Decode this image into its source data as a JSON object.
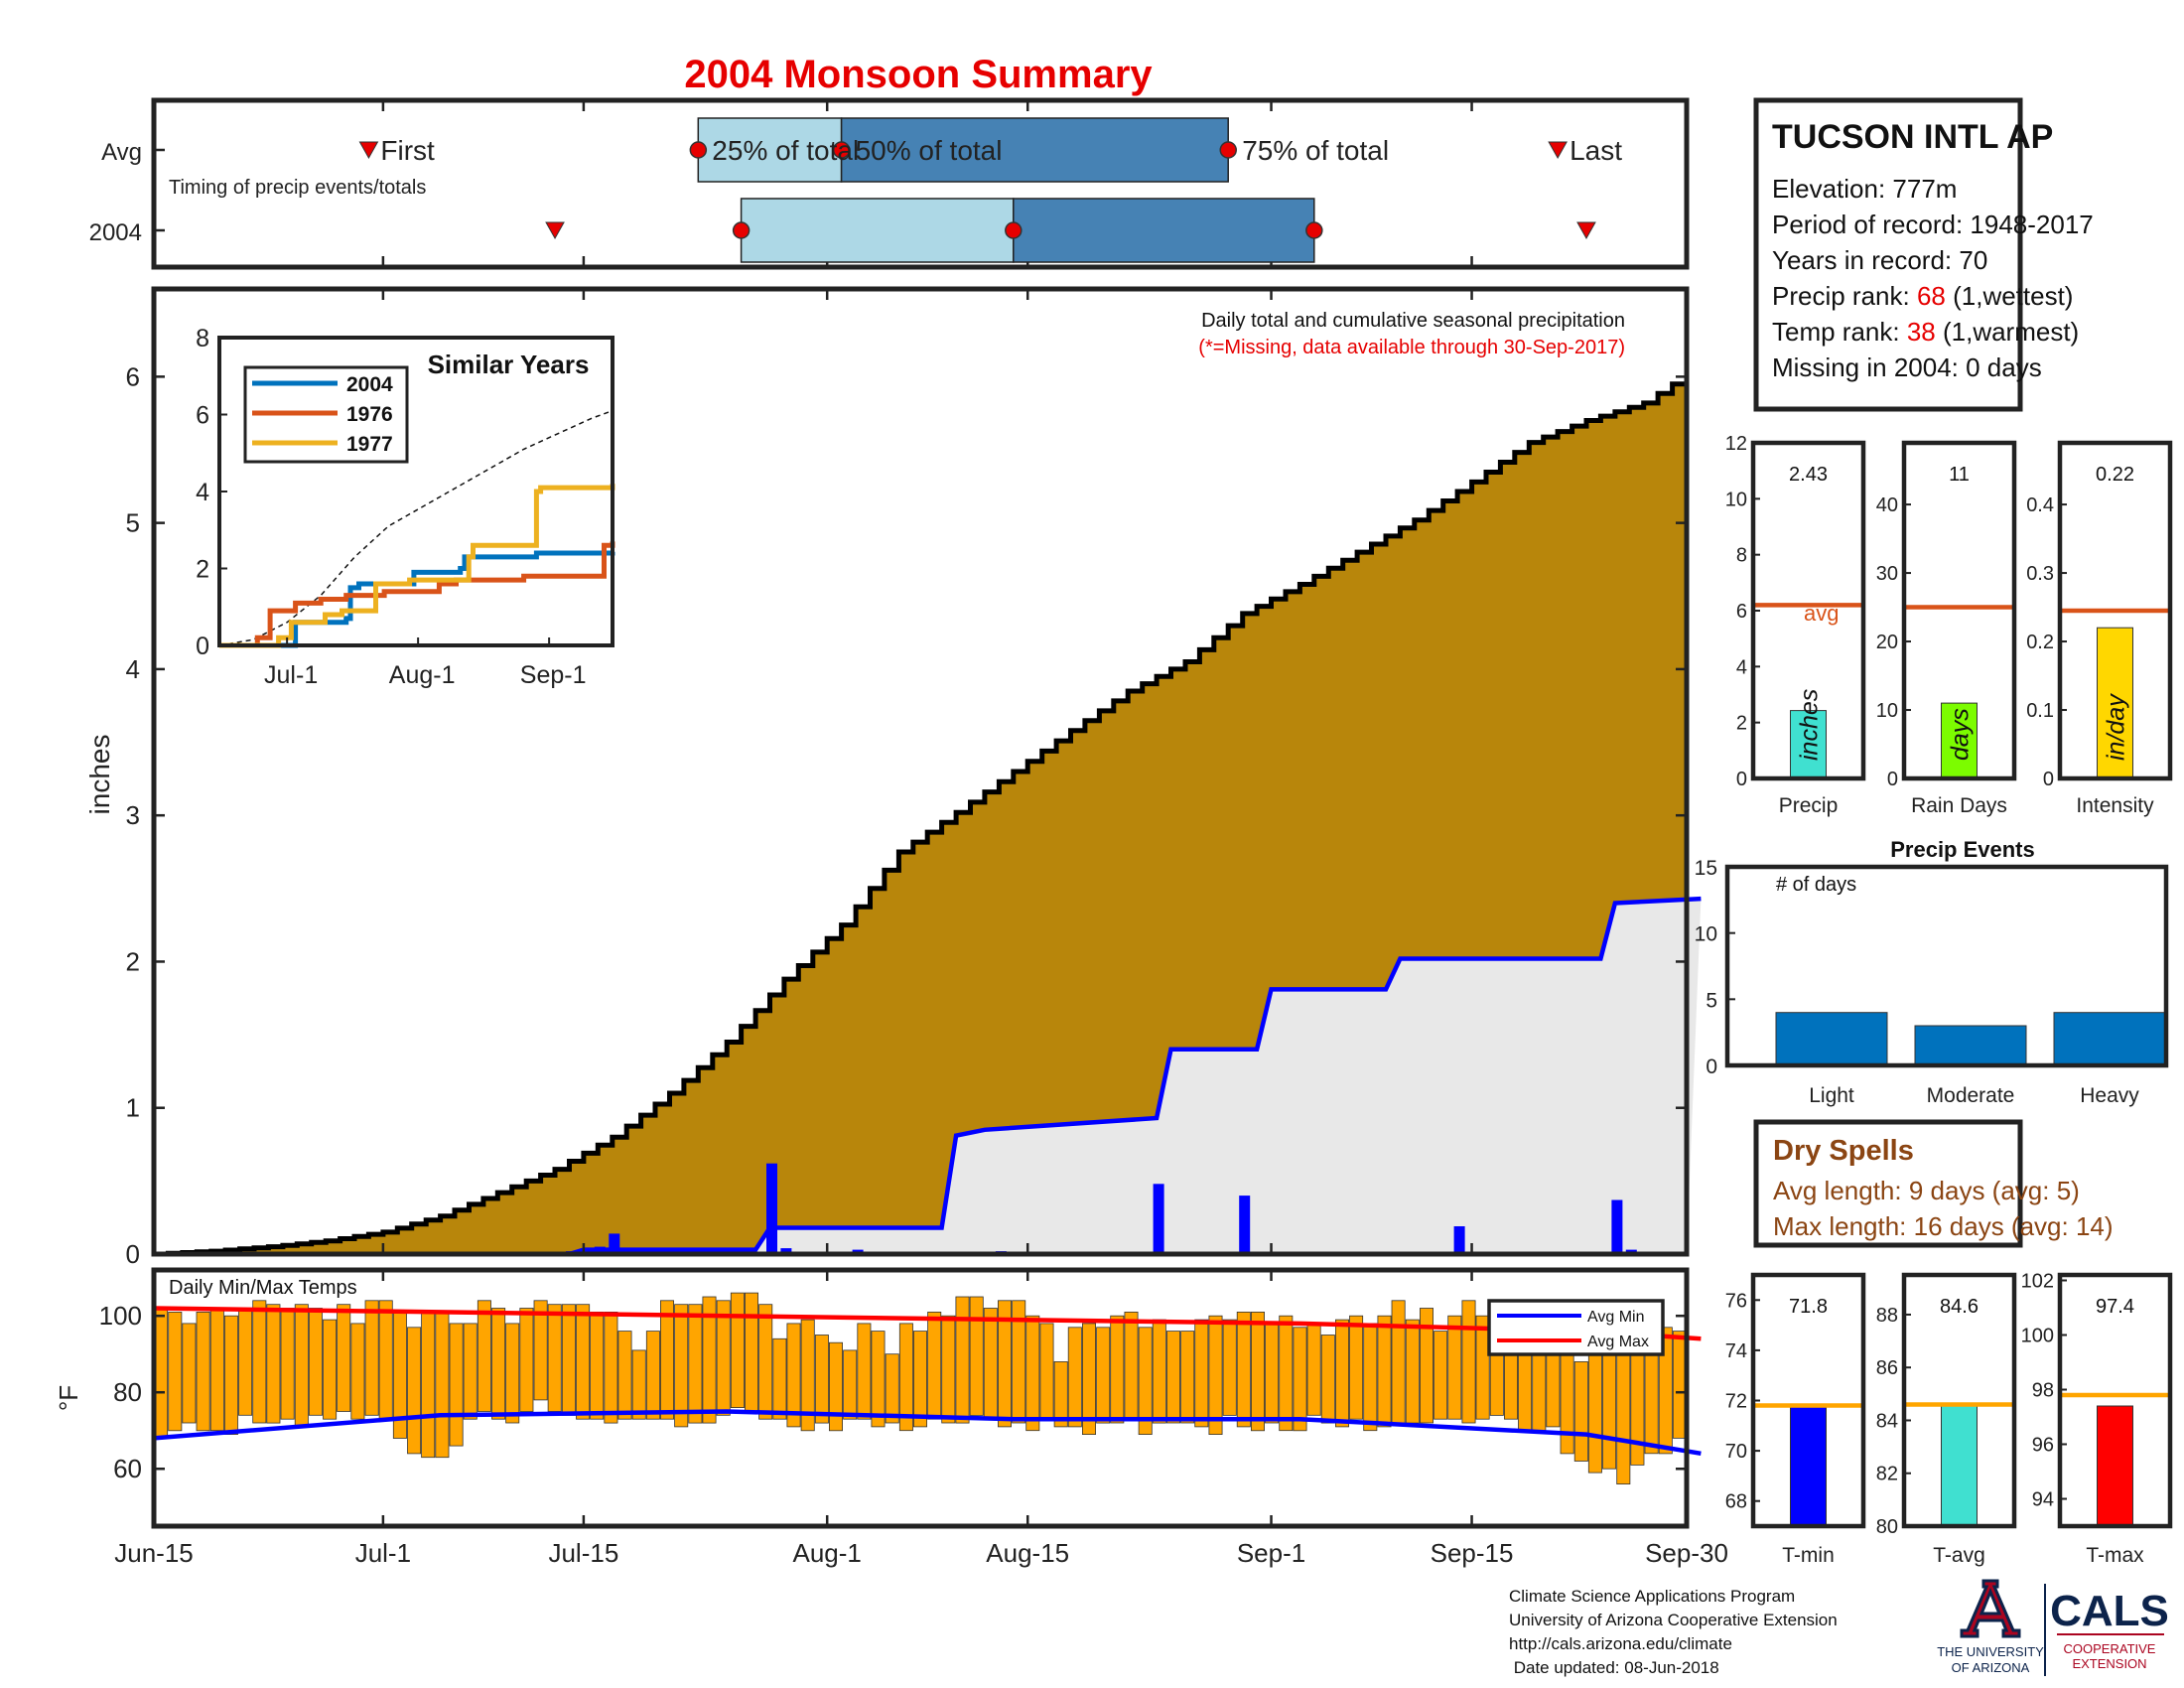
{
  "title": "2004 Monsoon Summary",
  "timing": {
    "row_avg": "Avg",
    "row_year": "2004",
    "caption": "Timing of precip events/totals",
    "first_label": "First",
    "last_label": "Last",
    "p25_label": "25% of total",
    "p50_label": "50% of total",
    "p75_label": "75% of total",
    "avg": {
      "first": "2004-06-30",
      "p25": "2004-07-23",
      "p50": "2004-08-02",
      "p75": "2004-08-29",
      "last": "2004-09-21"
    },
    "year": {
      "first": "2004-07-13",
      "p25": "2004-07-26",
      "p50": "2004-08-14",
      "p75": "2004-09-04",
      "last": "2004-09-23"
    },
    "colors": {
      "light": "#add8e6",
      "dark": "#4682b4",
      "marker": "#e60000"
    }
  },
  "station": {
    "name": "TUCSON INTL AP",
    "elevation": "Elevation: 777m",
    "period": "Period of record: 1948-2017",
    "years": "Years in record: 70",
    "precip_rank_label": "Precip rank: ",
    "precip_rank_value": "68",
    "precip_rank_note": " (1,wettest)",
    "temp_rank_label": "Temp rank: ",
    "temp_rank_value": "38",
    "temp_rank_note": " (1,warmest)",
    "missing": "Missing in 2004: 0 days"
  },
  "main_chart": {
    "ylabel": "inches",
    "note1": "Daily total and cumulative seasonal precipitation",
    "note2": "(*=Missing, data available through 30-Sep-2017)",
    "colors": {
      "avg_fill": "#b8860b",
      "year_fill": "#e8e8e8",
      "year_line": "#0000ff",
      "daily_bar": "#0000ff"
    }
  },
  "inset": {
    "title": "Similar Years",
    "legend": [
      "2004",
      "1976",
      "1977"
    ],
    "colors": [
      "#0072bd",
      "#d95319",
      "#edb120"
    ],
    "xticks": [
      "Jul-1",
      "Aug-1",
      "Sep-1"
    ],
    "yticks": [
      "0",
      "2",
      "4",
      "6",
      "8"
    ]
  },
  "temps": {
    "label": "Daily Min/Max Temps",
    "ylabel": "°F",
    "legend_min": "Avg Min",
    "legend_max": "Avg Max",
    "bar_color": "#ffa500"
  },
  "xaxis_labels": [
    "Jun-15",
    "Jul-1",
    "Jul-15",
    "Aug-1",
    "Aug-15",
    "Sep-1",
    "Sep-15",
    "Sep-30"
  ],
  "summary_bars": [
    {
      "value": "2.43",
      "label": "Precip",
      "unit": "inches",
      "avg_label": "avg"
    },
    {
      "value": "11",
      "label": "Rain Days",
      "unit": "days"
    },
    {
      "value": "0.22",
      "label": "Intensity",
      "unit": "in/day"
    }
  ],
  "events": {
    "title": "Precip Events",
    "ylabel": "# of days",
    "labels": [
      "Light",
      "Moderate",
      "Heavy"
    ]
  },
  "dry_spells": {
    "title": "Dry Spells",
    "avg": "Avg length: 9 days (avg: 5)",
    "max": "Max length: 16 days (avg: 14)"
  },
  "temp_bars": [
    {
      "value": "71.8",
      "label": "T-min"
    },
    {
      "value": "84.6",
      "label": "T-avg"
    },
    {
      "value": "97.4",
      "label": "T-max"
    }
  ],
  "footer": {
    "line1": "Climate Science Applications Program",
    "line2": "University of Arizona Cooperative Extension",
    "line3": "http://cals.arizona.edu/climate",
    "line4": " Date updated: 08-Jun-2018",
    "ua1": "THE UNIVERSITY",
    "ua2": "OF ARIZONA",
    "cals": "CALS",
    "coop1": "COOPERATIVE",
    "coop2": "EXTENSION"
  },
  "chart_data": [
    {
      "type": "area",
      "title": "Daily total and cumulative seasonal precipitation",
      "ylabel": "inches",
      "ylim": [
        0,
        6.6
      ],
      "x_range": [
        "2004-06-15",
        "2004-09-30"
      ],
      "series": [
        {
          "name": "avg",
          "x": [
            0,
            4,
            8,
            12,
            16,
            20,
            24,
            28,
            32,
            36,
            40,
            44,
            48,
            52,
            56,
            60,
            64,
            68,
            72,
            76,
            80,
            84,
            88,
            92,
            96,
            100,
            104,
            108
          ],
          "values": [
            0,
            0.02,
            0.05,
            0.09,
            0.15,
            0.26,
            0.42,
            0.58,
            0.8,
            1.1,
            1.45,
            1.88,
            2.25,
            2.75,
            3.02,
            3.3,
            3.58,
            3.85,
            4.05,
            4.38,
            4.58,
            4.8,
            5.02,
            5.28,
            5.55,
            5.7,
            5.82,
            6.08
          ]
        },
        {
          "name": "2004",
          "x": [
            0,
            29,
            30,
            42,
            43,
            55,
            56,
            58,
            70,
            71,
            77,
            78,
            86,
            87,
            90,
            91,
            101,
            102,
            108
          ],
          "values": [
            0,
            0,
            0.03,
            0.03,
            0.18,
            0.18,
            0.81,
            0.85,
            0.93,
            1.4,
            1.4,
            1.81,
            1.81,
            2.02,
            2.02,
            2.02,
            2.02,
            2.4,
            2.43
          ]
        },
        {
          "name": "daily",
          "x": [
            29,
            31,
            32,
            43,
            44,
            49,
            59,
            70,
            71,
            76,
            91,
            102,
            103
          ],
          "values": [
            0.02,
            0.05,
            0.14,
            0.62,
            0.04,
            0.03,
            0.02,
            0.48,
            0.01,
            0.4,
            0.19,
            0.37,
            0.03
          ]
        }
      ]
    },
    {
      "type": "line",
      "title": "Similar Years",
      "ylim": [
        0,
        8
      ],
      "series": [
        {
          "name": "2004",
          "x": [
            0,
            17,
            18,
            30,
            31,
            33,
            45,
            46,
            57,
            58,
            75,
            76,
            85,
            90,
            92,
            93
          ],
          "values": [
            0,
            0,
            0.6,
            0.7,
            1.5,
            1.6,
            1.6,
            1.9,
            2.0,
            2.3,
            2.4,
            2.4,
            2.4,
            2.4,
            2.4,
            2.43
          ]
        },
        {
          "name": "1976",
          "x": [
            0,
            9,
            12,
            18,
            24,
            30,
            39,
            52,
            56,
            72,
            75,
            88,
            91,
            93
          ],
          "values": [
            0,
            0.2,
            0.9,
            1.1,
            1.2,
            1.3,
            1.4,
            1.6,
            1.7,
            1.8,
            1.8,
            1.8,
            2.6,
            2.7
          ]
        },
        {
          "name": "1977",
          "x": [
            0,
            14,
            17,
            25,
            29,
            37,
            40,
            45,
            52,
            59,
            60,
            74,
            75,
            76,
            93
          ],
          "values": [
            0,
            0.2,
            0.6,
            0.8,
            0.9,
            1.6,
            1.6,
            1.7,
            1.7,
            2.3,
            2.6,
            2.6,
            4.0,
            4.1,
            4.2
          ]
        },
        {
          "name": "avg",
          "x": [
            0,
            8,
            16,
            24,
            32,
            40,
            48,
            56,
            64,
            72,
            80,
            88,
            93
          ],
          "values": [
            0,
            0.15,
            0.6,
            1.3,
            2.3,
            3.1,
            3.6,
            4.1,
            4.6,
            5.1,
            5.5,
            5.9,
            6.1
          ]
        }
      ]
    },
    {
      "type": "bar",
      "title": "Daily Min/Max Temps",
      "ylim": [
        45,
        112
      ],
      "avg_min": {
        "x": [
          0,
          20,
          40,
          60,
          80,
          100,
          108
        ],
        "values": [
          68,
          74,
          75,
          73,
          73,
          69,
          64
        ]
      },
      "avg_max": {
        "x": [
          0,
          20,
          40,
          60,
          80,
          100,
          108
        ],
        "values": [
          102,
          101,
          100,
          99,
          98,
          96,
          94
        ]
      },
      "mins": [
        68,
        70,
        72,
        70,
        70,
        69,
        74,
        72,
        72,
        73,
        71,
        74,
        73,
        75,
        73,
        74,
        73,
        68,
        64,
        63,
        63,
        66,
        73,
        75,
        73,
        72,
        75,
        78,
        75,
        74,
        73,
        73,
        72,
        73,
        73,
        73,
        73,
        71,
        72,
        72,
        74,
        76,
        75,
        73,
        73,
        71,
        70,
        72,
        70,
        73,
        73,
        71,
        72,
        70,
        71,
        73,
        72,
        72,
        74,
        73,
        71,
        72,
        70,
        73,
        71,
        71,
        69,
        72,
        72,
        73,
        69,
        72,
        72,
        72,
        71,
        69,
        74,
        71,
        70,
        72,
        70,
        70,
        74,
        72,
        71,
        73,
        70,
        71,
        72,
        72,
        72,
        73,
        73,
        72,
        73,
        74,
        73,
        70,
        70,
        71,
        64,
        62,
        59,
        60,
        56,
        61,
        64,
        64,
        68
      ],
      "maxs": [
        102,
        101,
        98,
        101,
        102,
        100,
        102,
        104,
        103,
        102,
        103,
        102,
        99,
        103,
        98,
        104,
        104,
        101,
        97,
        101,
        101,
        98,
        98,
        104,
        102,
        98,
        102,
        104,
        103,
        103,
        103,
        101,
        101,
        96,
        91,
        96,
        104,
        103,
        103,
        105,
        104,
        106,
        106,
        103,
        94,
        98,
        99,
        95,
        93,
        91,
        98,
        96,
        90,
        98,
        96,
        101,
        100,
        105,
        105,
        102,
        104,
        104,
        100,
        98,
        88,
        97,
        98,
        97,
        100,
        101,
        97,
        99,
        96,
        96,
        99,
        100,
        99,
        101,
        101,
        98,
        100,
        97,
        98,
        95,
        99,
        100,
        98,
        100,
        104,
        99,
        102,
        96,
        100,
        104,
        100,
        103,
        101,
        97,
        99,
        97,
        91,
        88,
        92,
        92,
        90,
        94,
        96,
        97,
        96
      ]
    },
    {
      "type": "bar",
      "title": "Precip",
      "categories": [
        "Precip"
      ],
      "values": [
        2.43
      ],
      "avg": 6.2,
      "ylim": [
        0,
        12
      ],
      "yticks": [
        "0",
        "2",
        "4",
        "6",
        "8",
        "10",
        "12"
      ],
      "color": "#40e0d0"
    },
    {
      "type": "bar",
      "title": "Rain Days",
      "categories": [
        "Rain Days"
      ],
      "values": [
        11
      ],
      "avg": 25,
      "ylim": [
        0,
        49
      ],
      "yticks": [
        "0",
        "10",
        "20",
        "30",
        "40"
      ],
      "color": "#7cfc00"
    },
    {
      "type": "bar",
      "title": "Intensity",
      "categories": [
        "Intensity"
      ],
      "values": [
        0.22
      ],
      "avg": 0.245,
      "ylim": [
        0,
        0.49
      ],
      "yticks": [
        "0",
        "0.1",
        "0.2",
        "0.3",
        "0.4"
      ],
      "color": "#ffd700"
    },
    {
      "type": "bar",
      "title": "Precip Events",
      "categories": [
        "Light",
        "Moderate",
        "Heavy"
      ],
      "values": [
        4,
        3,
        4
      ],
      "ylim": [
        0,
        15
      ],
      "yticks": [
        "0",
        "5",
        "10",
        "15"
      ],
      "color": "#0072bd"
    },
    {
      "type": "bar",
      "title": "T-min",
      "categories": [
        "T-min"
      ],
      "values": [
        71.8
      ],
      "avg": 71.8,
      "ylim": [
        67,
        77
      ],
      "yticks": [
        "68",
        "70",
        "72",
        "74",
        "76"
      ],
      "color": "#0000ff"
    },
    {
      "type": "bar",
      "title": "T-avg",
      "categories": [
        "T-avg"
      ],
      "values": [
        84.6
      ],
      "avg": 84.6,
      "ylim": [
        80,
        89.5
      ],
      "yticks": [
        "80",
        "82",
        "84",
        "86",
        "88"
      ],
      "color": "#40e0d0"
    },
    {
      "type": "bar",
      "title": "T-max",
      "categories": [
        "T-max"
      ],
      "values": [
        97.4
      ],
      "avg": 97.8,
      "ylim": [
        93,
        102.2
      ],
      "yticks": [
        "94",
        "96",
        "98",
        "100",
        "102"
      ],
      "color": "#ff0000"
    }
  ]
}
